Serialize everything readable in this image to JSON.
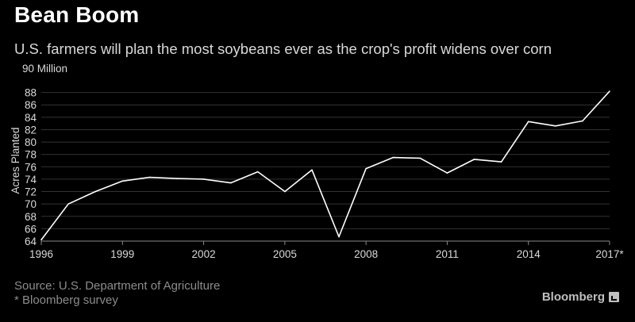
{
  "title": "Bean Boom",
  "subtitle": "U.S. farmers will plan the most soybeans ever as the crop's profit widens over corn",
  "source": "Source: U.S. Department of Agriculture",
  "footnote": "* Bloomberg survey",
  "brand": "Bloomberg",
  "colors": {
    "background": "#000000",
    "line": "#ffffff",
    "grid": "#333333",
    "text": "#d9d9d9"
  },
  "chart_data": {
    "type": "line",
    "title": "Bean Boom",
    "ylabel": "Acres Planted",
    "y_unit_label": "90 Million",
    "ylim": [
      64,
      90
    ],
    "xlim": [
      1996,
      2017
    ],
    "y_ticks": [
      64,
      66,
      68,
      70,
      72,
      74,
      76,
      78,
      80,
      82,
      84,
      86,
      88
    ],
    "x_ticks": [
      1996,
      1999,
      2002,
      2005,
      2008,
      2011,
      2014
    ],
    "x_tick_labels": [
      "1996",
      "1999",
      "2002",
      "2005",
      "2008",
      "2011",
      "2014"
    ],
    "last_x_label": "2017*",
    "grid": true,
    "series": [
      {
        "x": [
          1996,
          1997,
          1998,
          1999,
          2000,
          2001,
          2002,
          2003,
          2004,
          2005,
          2006,
          2007,
          2008,
          2009,
          2010,
          2011,
          2012,
          2013,
          2014,
          2015,
          2016,
          2017
        ],
        "values": [
          64.2,
          70.0,
          72.0,
          73.7,
          74.3,
          74.1,
          74.0,
          73.4,
          75.2,
          72.0,
          75.5,
          64.7,
          75.7,
          77.5,
          77.4,
          75.0,
          77.2,
          76.8,
          83.3,
          82.6,
          83.4,
          88.2
        ]
      }
    ]
  }
}
